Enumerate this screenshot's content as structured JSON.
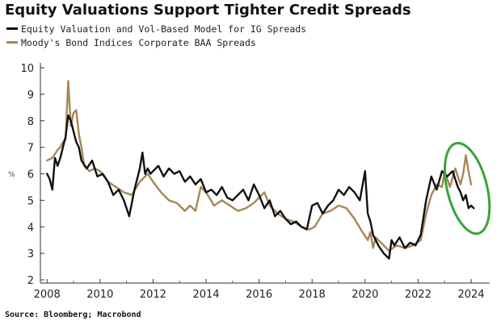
{
  "chart_data": {
    "type": "line",
    "title": "Equity Valuations Support Tighter Credit Spreads",
    "xlabel": "",
    "ylabel": "",
    "y_unit": "%",
    "xlim": [
      2007.75,
      2024.7
    ],
    "ylim": [
      2,
      10
    ],
    "yticks": [
      2,
      3,
      4,
      5,
      6,
      7,
      8,
      9,
      10
    ],
    "xticks": [
      2008,
      2010,
      2012,
      2014,
      2016,
      2018,
      2020,
      2022,
      2024
    ],
    "grid": false,
    "legend_position": "top-left",
    "source": "Source: Bloomberg; Macrobond",
    "highlight": {
      "shape": "ellipse",
      "color": "#3aa33a",
      "x_range": [
        2023.1,
        2024.6
      ],
      "y_range": [
        3.7,
        7.2
      ]
    },
    "series": [
      {
        "name": "Equity Valuation and Vol-Based Model for IG Spreads",
        "color": "#111111",
        "x": [
          2008.0,
          2008.1,
          2008.2,
          2008.3,
          2008.4,
          2008.5,
          2008.6,
          2008.7,
          2008.8,
          2008.9,
          2009.0,
          2009.1,
          2009.2,
          2009.3,
          2009.5,
          2009.7,
          2009.9,
          2010.1,
          2010.3,
          2010.5,
          2010.7,
          2010.9,
          2011.1,
          2011.3,
          2011.5,
          2011.6,
          2011.7,
          2011.8,
          2011.9,
          2012.0,
          2012.2,
          2012.4,
          2012.6,
          2012.8,
          2013.0,
          2013.2,
          2013.4,
          2013.6,
          2013.8,
          2014.0,
          2014.2,
          2014.4,
          2014.6,
          2014.8,
          2015.0,
          2015.2,
          2015.4,
          2015.6,
          2015.8,
          2016.0,
          2016.2,
          2016.4,
          2016.6,
          2016.8,
          2017.0,
          2017.2,
          2017.4,
          2017.6,
          2017.8,
          2018.0,
          2018.2,
          2018.4,
          2018.6,
          2018.8,
          2019.0,
          2019.2,
          2019.4,
          2019.6,
          2019.8,
          2020.0,
          2020.1,
          2020.2,
          2020.3,
          2020.5,
          2020.7,
          2020.9,
          2021.0,
          2021.1,
          2021.3,
          2021.5,
          2021.7,
          2021.9,
          2022.1,
          2022.3,
          2022.5,
          2022.7,
          2022.9,
          2023.1,
          2023.3,
          2023.5,
          2023.6,
          2023.7,
          2023.8,
          2023.9,
          2024.0,
          2024.1
        ],
        "values": [
          6.0,
          5.8,
          5.4,
          6.6,
          6.3,
          6.6,
          7.0,
          7.4,
          8.2,
          8.0,
          7.6,
          7.2,
          7.0,
          6.5,
          6.2,
          6.5,
          5.9,
          6.0,
          5.7,
          5.2,
          5.4,
          5.0,
          4.4,
          5.4,
          6.2,
          6.8,
          6.0,
          6.2,
          6.0,
          6.1,
          6.3,
          5.9,
          6.2,
          6.0,
          6.1,
          5.7,
          5.9,
          5.6,
          5.8,
          5.3,
          5.4,
          5.2,
          5.5,
          5.1,
          5.0,
          5.2,
          5.4,
          5.0,
          5.6,
          5.2,
          4.7,
          5.0,
          4.4,
          4.6,
          4.3,
          4.1,
          4.2,
          4.0,
          3.9,
          4.8,
          4.9,
          4.5,
          4.8,
          5.0,
          5.4,
          5.2,
          5.5,
          5.3,
          5.0,
          6.1,
          4.5,
          4.2,
          3.7,
          3.3,
          3.0,
          2.8,
          3.5,
          3.3,
          3.6,
          3.2,
          3.4,
          3.3,
          3.7,
          5.0,
          5.9,
          5.4,
          6.1,
          5.9,
          6.1,
          5.5,
          5.3,
          5.0,
          5.2,
          4.7,
          4.8,
          4.7
        ]
      },
      {
        "name": "Moody's Bond Indices Corporate BAA Spreads",
        "color": "#a6865a",
        "x": [
          2008.0,
          2008.2,
          2008.4,
          2008.5,
          2008.6,
          2008.7,
          2008.8,
          2008.9,
          2009.0,
          2009.1,
          2009.2,
          2009.3,
          2009.4,
          2009.6,
          2009.8,
          2010.0,
          2010.3,
          2010.6,
          2010.9,
          2011.2,
          2011.5,
          2011.8,
          2012.0,
          2012.3,
          2012.6,
          2012.9,
          2013.2,
          2013.4,
          2013.6,
          2013.8,
          2014.0,
          2014.3,
          2014.6,
          2014.9,
          2015.2,
          2015.5,
          2015.8,
          2016.0,
          2016.2,
          2016.4,
          2016.7,
          2017.0,
          2017.3,
          2017.6,
          2017.9,
          2018.1,
          2018.4,
          2018.7,
          2019.0,
          2019.3,
          2019.6,
          2019.9,
          2020.1,
          2020.2,
          2020.3,
          2020.4,
          2020.6,
          2020.9,
          2021.2,
          2021.5,
          2021.8,
          2022.1,
          2022.3,
          2022.5,
          2022.7,
          2022.9,
          2023.0,
          2023.2,
          2023.4,
          2023.6,
          2023.7,
          2023.8,
          2023.9,
          2024.0
        ],
        "values": [
          6.5,
          6.6,
          6.9,
          7.0,
          7.2,
          7.3,
          9.5,
          7.8,
          8.3,
          8.4,
          7.5,
          7.0,
          6.3,
          6.1,
          6.2,
          6.1,
          5.7,
          5.5,
          5.3,
          5.2,
          5.7,
          6.0,
          5.7,
          5.3,
          5.0,
          4.9,
          4.6,
          4.8,
          4.6,
          5.5,
          5.3,
          4.8,
          5.0,
          4.8,
          4.6,
          4.7,
          4.9,
          5.1,
          5.3,
          4.8,
          4.5,
          4.3,
          4.2,
          4.0,
          3.9,
          4.0,
          4.5,
          4.6,
          4.8,
          4.7,
          4.3,
          3.8,
          3.5,
          3.8,
          3.2,
          3.6,
          3.4,
          3.1,
          3.3,
          3.2,
          3.3,
          3.5,
          4.5,
          5.2,
          5.6,
          5.5,
          6.1,
          5.5,
          6.2,
          5.6,
          6.0,
          6.7,
          6.1,
          5.6
        ]
      }
    ]
  }
}
